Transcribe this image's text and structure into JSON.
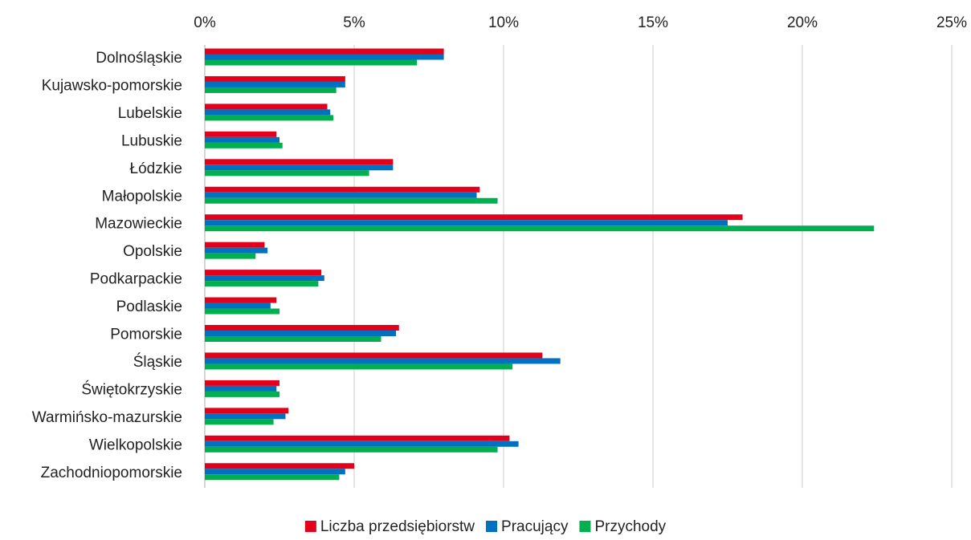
{
  "chart_data": {
    "type": "bar",
    "orientation": "horizontal",
    "categories": [
      "Dolnośląskie",
      "Kujawsko-pomorskie",
      "Lubelskie",
      "Lubuskie",
      "Łódzkie",
      "Małopolskie",
      "Mazowieckie",
      "Opolskie",
      "Podkarpackie",
      "Podlaskie",
      "Pomorskie",
      "Śląskie",
      "Świętokrzyskie",
      "Warmińsko-mazurskie",
      "Wielkopolskie",
      "Zachodniopomorskie"
    ],
    "series": [
      {
        "name": "Liczba przedsiębiorstw",
        "color": "#e3001b",
        "values": [
          8.0,
          4.7,
          4.1,
          2.4,
          6.3,
          9.2,
          18.0,
          2.0,
          3.9,
          2.4,
          6.5,
          11.3,
          2.5,
          2.8,
          10.2,
          5.0
        ]
      },
      {
        "name": "Pracujący",
        "color": "#0070c0",
        "values": [
          8.0,
          4.7,
          4.2,
          2.5,
          6.3,
          9.1,
          17.5,
          2.1,
          4.0,
          2.2,
          6.4,
          11.9,
          2.4,
          2.7,
          10.5,
          4.7
        ]
      },
      {
        "name": "Przychody",
        "color": "#00b050",
        "values": [
          7.1,
          4.4,
          4.3,
          2.6,
          5.5,
          9.8,
          22.4,
          1.7,
          3.8,
          2.5,
          5.9,
          10.3,
          2.5,
          2.3,
          9.8,
          4.5
        ]
      }
    ],
    "xlim": [
      0,
      25
    ],
    "x_ticks": [
      0,
      5,
      10,
      15,
      20,
      25
    ],
    "x_tick_labels": [
      "0%",
      "5%",
      "10%",
      "15%",
      "20%",
      "25%"
    ],
    "x_axis_position": "top",
    "grid": true,
    "legend_position": "bottom",
    "title": "",
    "xlabel": "",
    "ylabel": ""
  }
}
